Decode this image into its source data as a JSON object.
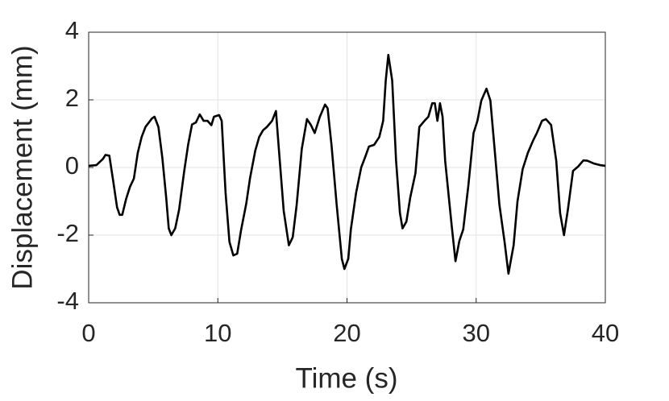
{
  "chart_data": {
    "type": "line",
    "xlabel": "Time (s)",
    "ylabel": "Displacement (mm)",
    "xlim": [
      0,
      40
    ],
    "xticks": [
      0,
      10,
      20,
      30,
      40
    ],
    "ylim": [
      -4,
      4
    ],
    "yticks": [
      -4,
      -2,
      0,
      2,
      4
    ],
    "grid": true,
    "x": [
      0,
      0.6,
      1.1,
      1.3,
      1.6,
      1.9,
      2.2,
      2.4,
      2.6,
      2.9,
      3.2,
      3.5,
      3.8,
      4.1,
      4.4,
      4.7,
      4.9,
      5.1,
      5.4,
      5.7,
      6.0,
      6.2,
      6.4,
      6.7,
      7.0,
      7.4,
      7.7,
      8.0,
      8.3,
      8.6,
      8.9,
      9.2,
      9.5,
      9.7,
      10.1,
      10.3,
      10.6,
      10.9,
      11.2,
      11.5,
      11.8,
      12.2,
      12.5,
      12.9,
      13.2,
      13.5,
      13.8,
      14.2,
      14.5,
      14.7,
      15.1,
      15.5,
      15.8,
      16.1,
      16.5,
      16.9,
      17.2,
      17.5,
      17.9,
      18.3,
      18.5,
      18.8,
      19.2,
      19.6,
      19.8,
      20.1,
      20.3,
      20.7,
      21.1,
      21.4,
      21.7,
      22.1,
      22.5,
      22.8,
      23.0,
      23.2,
      23.5,
      23.8,
      24.1,
      24.3,
      24.6,
      24.9,
      25.3,
      25.6,
      26.0,
      26.3,
      26.6,
      26.8,
      27.0,
      27.2,
      27.4,
      27.6,
      28.1,
      28.4,
      28.7,
      29.0,
      29.4,
      29.8,
      30.1,
      30.4,
      30.8,
      31.1,
      31.4,
      31.8,
      32.2,
      32.5,
      32.9,
      33.2,
      33.6,
      34.0,
      34.4,
      34.7,
      35.1,
      35.4,
      35.8,
      36.2,
      36.5,
      36.8,
      37.1,
      37.5,
      37.9,
      38.3,
      38.6,
      39.1,
      39.6,
      40
    ],
    "series": [
      {
        "color": "#000000",
        "values": [
          0.05,
          0.07,
          0.25,
          0.37,
          0.35,
          -0.4,
          -1.18,
          -1.4,
          -1.4,
          -0.93,
          -0.57,
          -0.33,
          0.43,
          0.9,
          1.2,
          1.35,
          1.45,
          1.5,
          1.2,
          0.3,
          -0.88,
          -1.8,
          -2.0,
          -1.8,
          -1.25,
          -0.1,
          0.67,
          1.27,
          1.33,
          1.57,
          1.38,
          1.38,
          1.25,
          1.5,
          1.55,
          1.38,
          -0.75,
          -2.2,
          -2.6,
          -2.55,
          -1.85,
          -1.07,
          -0.3,
          0.5,
          0.9,
          1.1,
          1.2,
          1.38,
          1.67,
          0.67,
          -1.28,
          -2.3,
          -2.06,
          -1.12,
          0.55,
          1.43,
          1.26,
          1.02,
          1.5,
          1.86,
          1.75,
          0.67,
          -1.1,
          -2.7,
          -3.0,
          -2.7,
          -1.83,
          -0.76,
          0,
          0.3,
          0.62,
          0.67,
          0.9,
          1.38,
          2.57,
          3.33,
          2.57,
          0.2,
          -1.35,
          -1.8,
          -1.6,
          -0.88,
          -0.17,
          1.2,
          1.38,
          1.5,
          1.9,
          1.9,
          1.38,
          1.9,
          1.5,
          0.2,
          -1.7,
          -2.77,
          -2.17,
          -1.83,
          -0.52,
          1.02,
          1.38,
          1.98,
          2.33,
          1.98,
          0.67,
          -1.1,
          -2.2,
          -3.14,
          -2.3,
          -1.0,
          -0.05,
          0.43,
          0.79,
          1.02,
          1.38,
          1.43,
          1.26,
          0.2,
          -1.35,
          -2.0,
          -1.25,
          -0.1,
          0.03,
          0.21,
          0.2,
          0.12,
          0.07,
          0.05
        ]
      }
    ]
  }
}
